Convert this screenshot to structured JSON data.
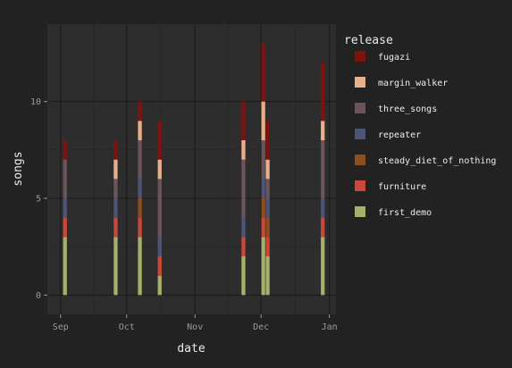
{
  "chart_data": {
    "type": "bar",
    "stacked": true,
    "xlabel": "date",
    "ylabel": "songs",
    "x_ticks": [
      "Sep",
      "Oct",
      "Nov",
      "Dec",
      "Jan"
    ],
    "x_tick_dates": [
      "2020-09-01",
      "2020-10-01",
      "2020-11-01",
      "2020-12-01",
      "2021-01-01"
    ],
    "xlim": [
      "2020-08-26",
      "2021-01-04"
    ],
    "y_ticks": [
      0,
      5,
      10
    ],
    "ylim": [
      -1,
      14
    ],
    "grid": true,
    "legend": {
      "title": "release",
      "placement": "right",
      "entries": [
        "fugazi",
        "margin_walker",
        "three_songs",
        "repeater",
        "steady_diet_of_nothing",
        "furniture",
        "first_demo"
      ]
    },
    "colors": {
      "fugazi": "#7d1211",
      "margin_walker": "#e8b08a",
      "three_songs": "#6a555c",
      "repeater": "#4a5578",
      "steady_diet_of_nothing": "#8f4f1c",
      "furniture": "#c9483a",
      "first_demo": "#a6b06a"
    },
    "stack_order": [
      "first_demo",
      "furniture",
      "steady_diet_of_nothing",
      "repeater",
      "three_songs",
      "margin_walker",
      "fugazi"
    ],
    "bars": [
      {
        "date": "2020-09-03",
        "first_demo": 3,
        "furniture": 1,
        "repeater": 1,
        "three_songs": 2,
        "fugazi": 1
      },
      {
        "date": "2020-09-26",
        "first_demo": 3,
        "furniture": 1,
        "repeater": 1,
        "three_songs": 1,
        "margin_walker": 1,
        "fugazi": 1
      },
      {
        "date": "2020-10-07",
        "first_demo": 3,
        "furniture": 1,
        "steady_diet_of_nothing": 1,
        "repeater": 1,
        "three_songs": 2,
        "margin_walker": 1,
        "fugazi": 1
      },
      {
        "date": "2020-10-16",
        "first_demo": 1,
        "furniture": 1,
        "repeater": 1,
        "three_songs": 3,
        "margin_walker": 1,
        "fugazi": 2
      },
      {
        "date": "2020-11-23",
        "first_demo": 2,
        "furniture": 1,
        "repeater": 1,
        "three_songs": 3,
        "margin_walker": 1,
        "fugazi": 2
      },
      {
        "date": "2020-12-02",
        "first_demo": 3,
        "furniture": 1,
        "steady_diet_of_nothing": 1,
        "repeater": 1,
        "three_songs": 2,
        "margin_walker": 2,
        "fugazi": 3
      },
      {
        "date": "2020-12-04",
        "first_demo": 2,
        "furniture": 1,
        "steady_diet_of_nothing": 1,
        "repeater": 1,
        "three_songs": 1,
        "margin_walker": 1,
        "fugazi": 2
      },
      {
        "date": "2020-12-29",
        "first_demo": 3,
        "furniture": 1,
        "repeater": 1,
        "three_songs": 3,
        "margin_walker": 1,
        "fugazi": 3
      }
    ]
  }
}
